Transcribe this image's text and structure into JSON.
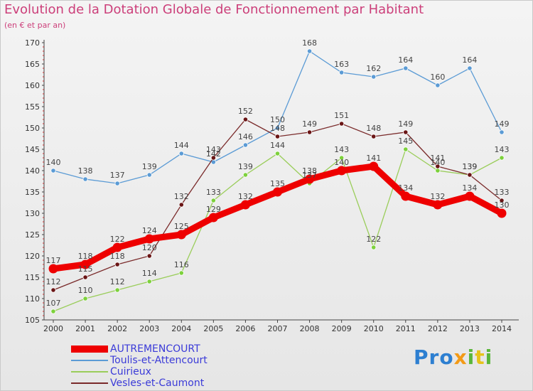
{
  "header": {
    "title": "Evolution de la Dotation Globale de Fonctionnement par Habitant",
    "subtitle": "(en € et par an)"
  },
  "brand": {
    "text": "Proxiti",
    "colors": [
      "#2d7fd1",
      "#f39a16",
      "#5ab63a",
      "#e6c31a"
    ]
  },
  "chart_data": {
    "type": "line",
    "title": "Evolution de la Dotation Globale de Fonctionnement par Habitant",
    "subtitle": "(en € et par an)",
    "xlabel": "",
    "ylabel": "",
    "x": [
      "2000",
      "2001",
      "2002",
      "2003",
      "2004",
      "2005",
      "2006",
      "2007",
      "2008",
      "2009",
      "2010",
      "2011",
      "2012",
      "2013",
      "2014"
    ],
    "ylim": [
      105,
      170
    ],
    "yticks": [
      105,
      110,
      115,
      120,
      125,
      130,
      135,
      140,
      145,
      150,
      155,
      160,
      165,
      170
    ],
    "grid": false,
    "legend_position": "bottom-left",
    "series": [
      {
        "name": "AUTREMENCOURT",
        "color": "#ee0000",
        "emphasis": true,
        "values": [
          117,
          118,
          122,
          124,
          125,
          129,
          132,
          135,
          138,
          140,
          141,
          134,
          132,
          134,
          130
        ],
        "labels": [
          "117",
          "118",
          "122",
          "124",
          "125",
          "129",
          "132",
          "135",
          "138",
          "140",
          "141",
          "134",
          "132",
          "134",
          "130"
        ]
      },
      {
        "name": "Toulis-et-Attencourt",
        "color": "#5b9bd5",
        "values": [
          140,
          138,
          137,
          139,
          144,
          142,
          146,
          150,
          168,
          163,
          162,
          164,
          160,
          164,
          149
        ],
        "labels": [
          "140",
          "138",
          "137",
          "139",
          "144",
          "142",
          "146",
          "150",
          "168",
          "163",
          "162",
          "164",
          "160",
          "164",
          "149"
        ]
      },
      {
        "name": "Cuirieux",
        "color": "#9acd5a",
        "marker": "#7dd13c",
        "values": [
          107,
          110,
          112,
          114,
          116,
          133,
          139,
          144,
          137,
          143,
          122,
          145,
          140,
          139,
          143
        ],
        "labels": [
          "107",
          "110",
          "112",
          "114",
          "116",
          "133",
          "139",
          "144",
          "137",
          "143",
          "122",
          "145",
          "140",
          "139",
          "143"
        ]
      },
      {
        "name": "Vesles-et-Caumont",
        "color": "#7a2a2a",
        "marker": "#6a1515",
        "values": [
          112,
          115,
          118,
          120,
          132,
          143,
          152,
          148,
          149,
          151,
          148,
          149,
          141,
          139,
          133
        ],
        "labels": [
          "112",
          "115",
          "118",
          "120",
          "132",
          "143",
          "152",
          "148",
          "149",
          "151",
          "148",
          "149",
          "141",
          "139",
          "133"
        ]
      }
    ]
  }
}
